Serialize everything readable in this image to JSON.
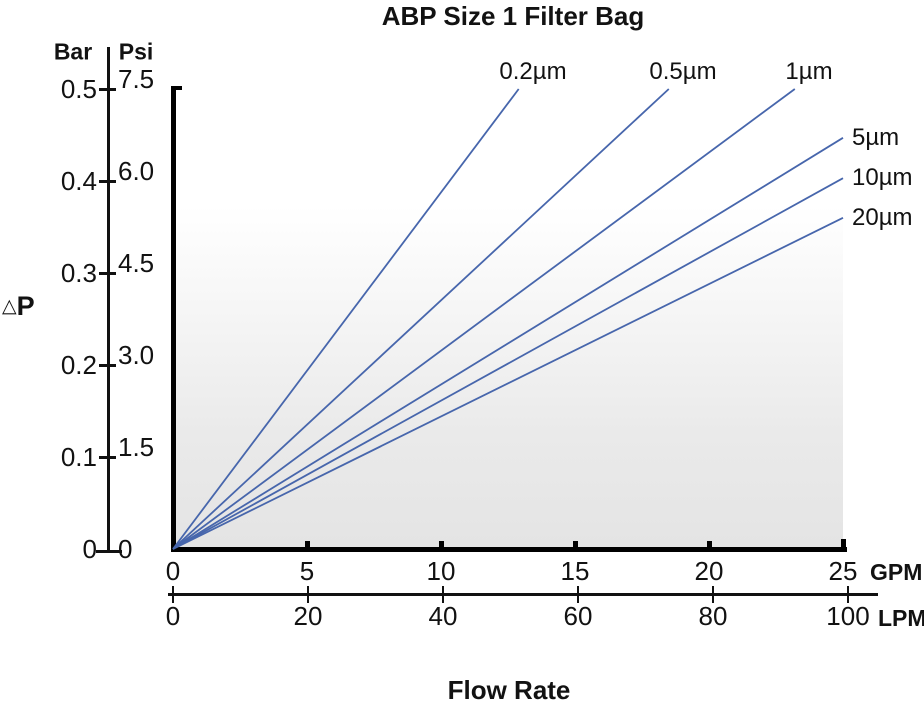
{
  "title": "ABP Size 1 Filter Bag",
  "y_axis": {
    "label_triangle": "△",
    "label_letter": "P",
    "left_unit": "Bar",
    "right_unit": "Psi",
    "ticks": [
      {
        "bar": "0.5",
        "psi": "7.5"
      },
      {
        "bar": "0.4",
        "psi": "6.0"
      },
      {
        "bar": "0.3",
        "psi": "4.5"
      },
      {
        "bar": "0.2",
        "psi": "3.0"
      },
      {
        "bar": "0.1",
        "psi": "1.5"
      },
      {
        "bar": "0",
        "psi": "0"
      }
    ]
  },
  "x_axis": {
    "label": "Flow Rate",
    "gpm": {
      "unit": "GPM",
      "tick_labels": [
        "0",
        "5",
        "10",
        "15",
        "20",
        "25"
      ]
    },
    "lpm": {
      "unit": "LPM",
      "tick_labels": [
        "0",
        "20",
        "40",
        "60",
        "80",
        "100"
      ]
    }
  },
  "chart_data": {
    "type": "line",
    "title": "ABP Size 1 Filter Bag",
    "xlabel": "Flow Rate",
    "ylabel": "△P",
    "grid": false,
    "line_color": "#4766ac",
    "x_units": [
      {
        "name": "GPM",
        "range": [
          0,
          25
        ],
        "ticks": [
          0,
          5,
          10,
          15,
          20,
          25
        ]
      },
      {
        "name": "LPM",
        "range": [
          0,
          100
        ],
        "ticks": [
          0,
          20,
          40,
          60,
          80,
          100
        ]
      }
    ],
    "y_units": [
      {
        "name": "Bar",
        "range": [
          0,
          0.5
        ],
        "ticks": [
          0,
          0.1,
          0.2,
          0.3,
          0.4,
          0.5
        ]
      },
      {
        "name": "Psi",
        "range": [
          0,
          7.5
        ],
        "ticks": [
          0,
          1.5,
          3.0,
          4.5,
          6.0,
          7.5
        ]
      }
    ],
    "series": [
      {
        "name": "0.2µm",
        "points_gpm_bar": [
          [
            0,
            0
          ],
          [
            12.9,
            0.5
          ]
        ]
      },
      {
        "name": "0.5µm",
        "points_gpm_bar": [
          [
            0,
            0
          ],
          [
            18.5,
            0.5
          ]
        ]
      },
      {
        "name": "1µm",
        "points_gpm_bar": [
          [
            0,
            0
          ],
          [
            23.2,
            0.5
          ]
        ]
      },
      {
        "name": "5µm",
        "points_gpm_bar": [
          [
            0,
            0
          ],
          [
            25,
            0.447
          ]
        ]
      },
      {
        "name": "10µm",
        "points_gpm_bar": [
          [
            0,
            0
          ],
          [
            25,
            0.403
          ]
        ]
      },
      {
        "name": "20µm",
        "points_gpm_bar": [
          [
            0,
            0
          ],
          [
            25,
            0.36
          ]
        ]
      }
    ]
  }
}
